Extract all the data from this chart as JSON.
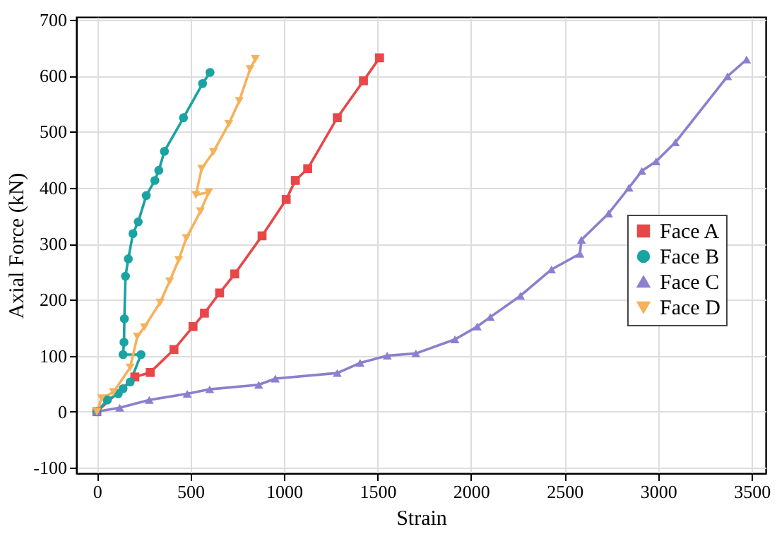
{
  "chart_data": {
    "type": "line",
    "xlabel": "Strain",
    "ylabel": "Axial Force (kN)",
    "xlim": [
      -110,
      3575
    ],
    "ylim": [
      -110,
      705
    ],
    "xticks": [
      0,
      500,
      1000,
      1500,
      2000,
      2500,
      3000,
      3500
    ],
    "yticks": [
      -100,
      0,
      100,
      200,
      300,
      400,
      500,
      600,
      700
    ],
    "grid": true,
    "legend": "right",
    "line_style": "solid",
    "series": [
      {
        "name": "Face A",
        "color": "#e8474a",
        "marker": "square",
        "x": [
          0,
          203,
          285,
          412,
          514,
          575,
          656,
          737,
          883,
          1012,
          1061,
          1127,
          1285,
          1425,
          1511
        ],
        "values": [
          0,
          62,
          70,
          111,
          152,
          176,
          212,
          246,
          314,
          379,
          413,
          434,
          525,
          591,
          632
        ]
      },
      {
        "name": "Face B",
        "color": "#1aa3a3",
        "marker": "circle",
        "x": [
          0,
          56,
          114,
          140,
          178,
          236,
          140,
          145,
          147,
          153,
          168,
          193,
          221,
          264,
          310,
          331,
          361,
          463,
          565,
          605
        ],
        "values": [
          0,
          21,
          32,
          41,
          53,
          102,
          102,
          124,
          166,
          242,
          273,
          318,
          339,
          386,
          413,
          431,
          465,
          525,
          586,
          606
        ]
      },
      {
        "name": "Face C",
        "color": "#8c7fcf",
        "marker": "triangle",
        "x": [
          0,
          122,
          280,
          483,
          603,
          865,
          954,
          1285,
          1407,
          1552,
          1705,
          1914,
          2033,
          2103,
          2264,
          2430,
          2582,
          2590,
          2735,
          2844,
          2913,
          2989,
          3092,
          3371,
          3473
        ],
        "values": [
          0,
          7,
          21,
          32,
          40,
          48,
          59,
          69,
          87,
          100,
          104,
          129,
          152,
          169,
          207,
          254,
          282,
          307,
          354,
          400,
          430,
          447,
          481,
          599,
          629
        ]
      },
      {
        "name": "Face D",
        "color": "#f5b25b",
        "marker": "triangle-down",
        "x": [
          0,
          25,
          89,
          178,
          216,
          254,
          338,
          389,
          437,
          478,
          554,
          598,
          529,
          560,
          623,
          705,
          761,
          819,
          847
        ],
        "values": [
          0,
          24,
          35,
          79,
          134,
          151,
          195,
          233,
          271,
          310,
          358,
          392,
          387,
          434,
          464,
          514,
          555,
          612,
          630
        ]
      }
    ]
  }
}
